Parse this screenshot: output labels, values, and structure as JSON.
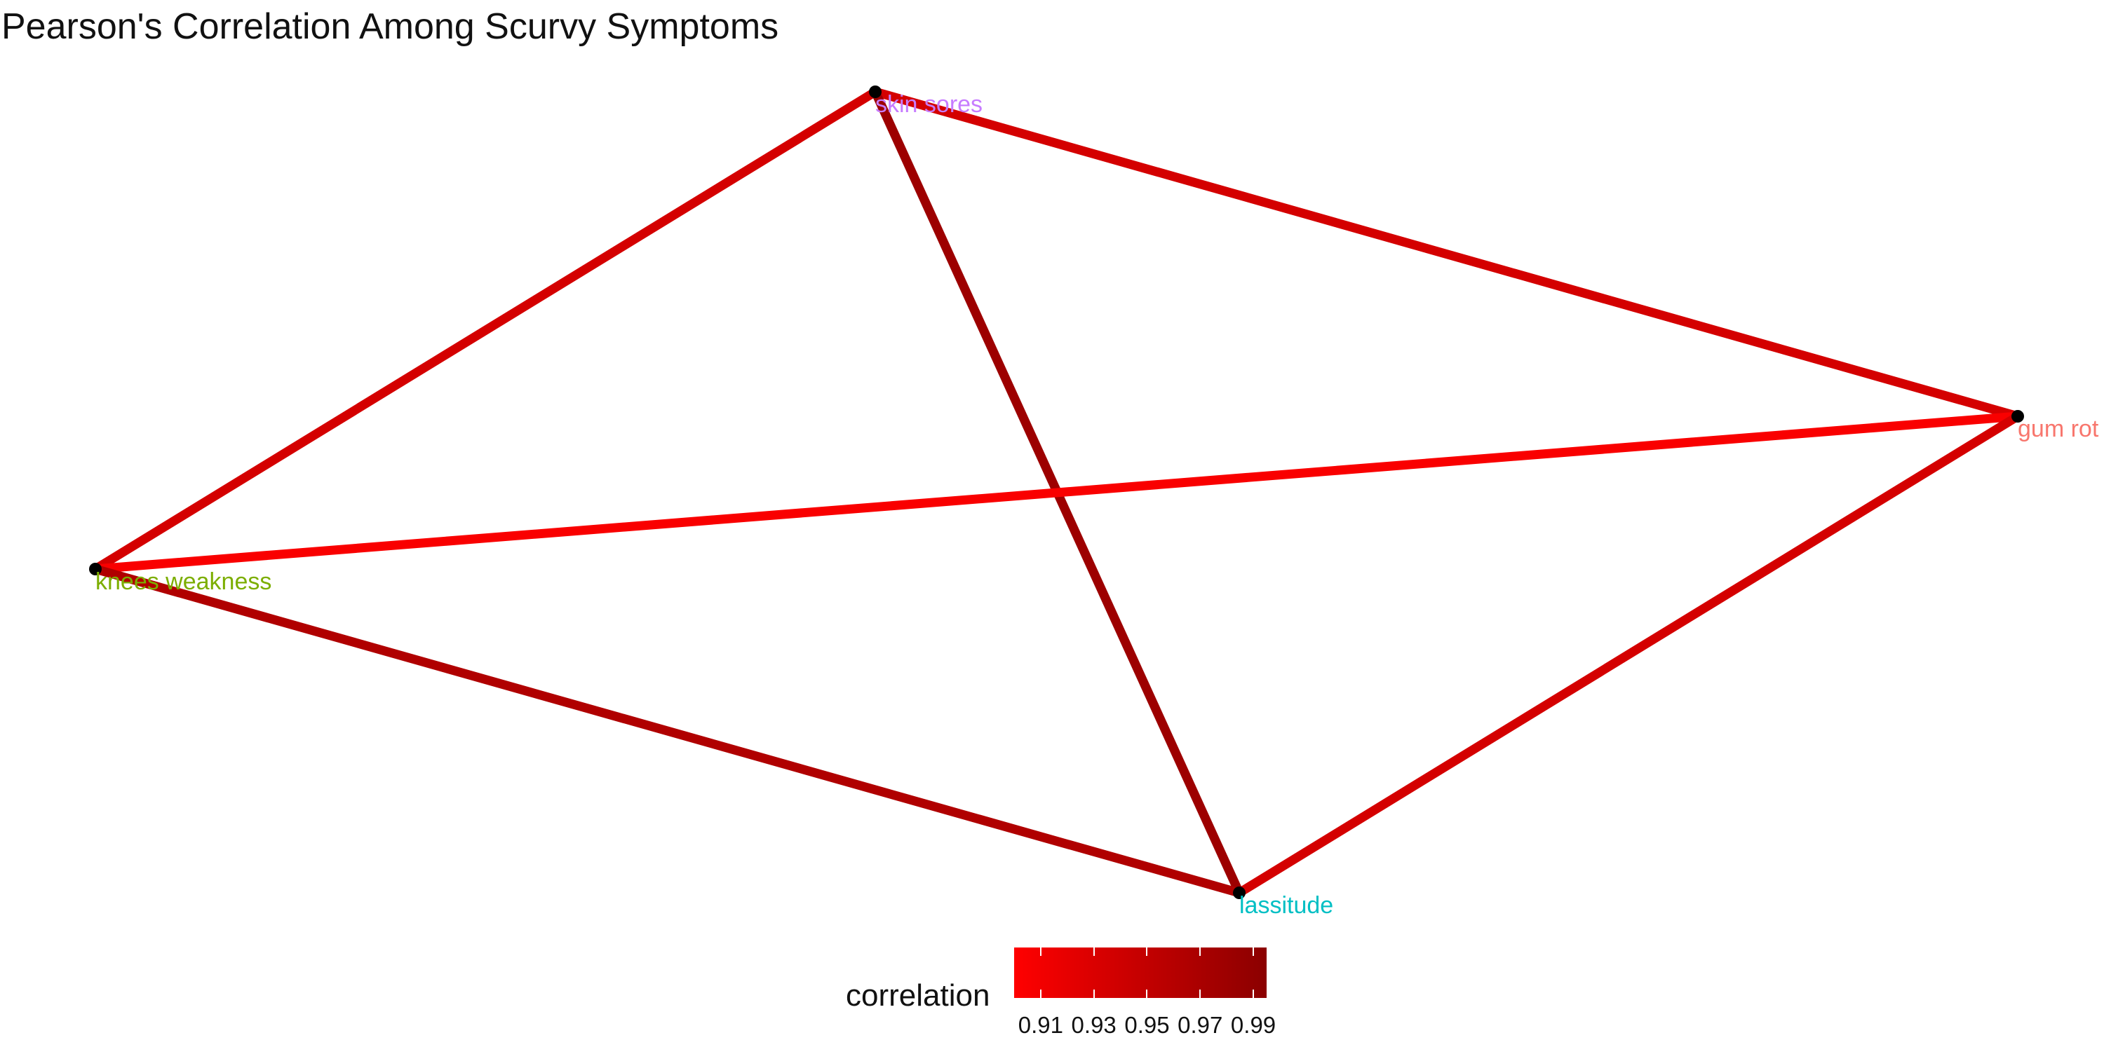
{
  "title": "Pearson's Correlation Among Scurvy Symptoms",
  "nodes": [
    {
      "id": "skin_sores",
      "label": "skin sores",
      "color": "#c77cff"
    },
    {
      "id": "gum_rot",
      "label": "gum rot",
      "color": "#f8766d"
    },
    {
      "id": "knees_weakness",
      "label": "knees weakness",
      "color": "#7cae00"
    },
    {
      "id": "lassitude",
      "label": "lassitude",
      "color": "#00bfc4"
    }
  ],
  "edges": [
    {
      "from": "skin_sores",
      "to": "knees_weakness",
      "correlation": 0.935
    },
    {
      "from": "skin_sores",
      "to": "gum_rot",
      "correlation": 0.935
    },
    {
      "from": "skin_sores",
      "to": "lassitude",
      "correlation": 0.98
    },
    {
      "from": "gum_rot",
      "to": "knees_weakness",
      "correlation": 0.905
    },
    {
      "from": "gum_rot",
      "to": "lassitude",
      "correlation": 0.935
    },
    {
      "from": "knees_weakness",
      "to": "lassitude",
      "correlation": 0.965
    }
  ],
  "legend": {
    "title": "correlation",
    "min": 0.9,
    "max": 0.995,
    "low_color": "#ff0000",
    "high_color": "#8b0000",
    "ticks": [
      {
        "value": 0.91,
        "label": "0.91"
      },
      {
        "value": 0.93,
        "label": "0.93"
      },
      {
        "value": 0.95,
        "label": "0.95"
      },
      {
        "value": 0.97,
        "label": "0.97"
      },
      {
        "value": 0.99,
        "label": "0.99"
      }
    ]
  },
  "node_point_color": "#000000"
}
